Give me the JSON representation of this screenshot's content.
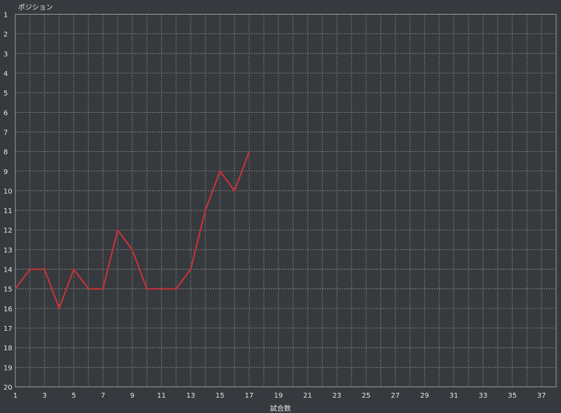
{
  "chart_data": {
    "type": "line",
    "ylabel": "ポジション",
    "xlabel": "試合数",
    "xlim": [
      1,
      38
    ],
    "ylim": [
      1,
      20
    ],
    "y_inverted": true,
    "x_tick_labels": [
      1,
      3,
      5,
      7,
      9,
      11,
      13,
      15,
      17,
      19,
      21,
      23,
      25,
      27,
      29,
      31,
      33,
      35,
      37
    ],
    "y_tick_labels": [
      1,
      2,
      3,
      4,
      5,
      6,
      7,
      8,
      9,
      10,
      11,
      12,
      13,
      14,
      15,
      16,
      17,
      18,
      19,
      20
    ],
    "grid": true,
    "series": [
      {
        "x": [
          1,
          2,
          3,
          4,
          5,
          6,
          7,
          8,
          9,
          10,
          11,
          12,
          13,
          14,
          15,
          16,
          17
        ],
        "values": [
          15,
          14,
          14,
          16,
          14,
          15,
          15,
          12,
          13,
          15,
          15,
          15,
          14,
          11,
          9,
          10,
          8
        ],
        "color": "#c0353a"
      }
    ],
    "colors": {
      "background": "#36393d",
      "grid": "#a8a8a8",
      "axis": "#9a9a9a",
      "text": "#e6e6e6"
    }
  }
}
